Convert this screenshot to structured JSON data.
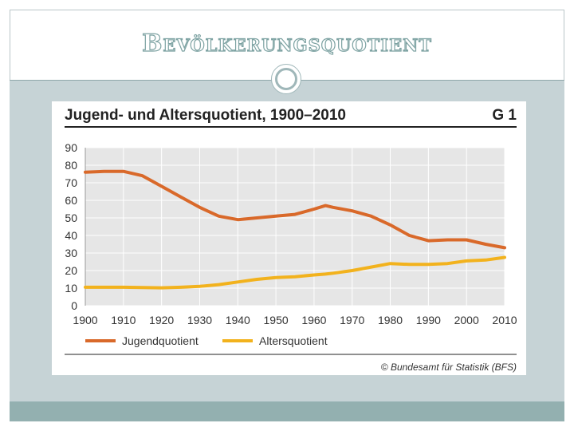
{
  "slide": {
    "title": "Bevölkerungsquotient",
    "colors": {
      "title_outline": "#7ea3a3",
      "band": "#c6d3d6",
      "bottom_band": "#93b0b0"
    }
  },
  "figure": {
    "title": "Jugend- und Altersquotient, 1900–2010",
    "code": "G 1",
    "source": "© Bundesamt für Statistik (BFS)"
  },
  "chart_data": {
    "type": "line",
    "title": "Jugend- und Altersquotient, 1900–2010",
    "xlabel": "",
    "ylabel": "",
    "xlim": [
      1900,
      2010
    ],
    "ylim": [
      0,
      90
    ],
    "x_ticks": [
      1900,
      1910,
      1920,
      1930,
      1940,
      1950,
      1960,
      1970,
      1980,
      1990,
      2000,
      2010
    ],
    "y_ticks": [
      0,
      10,
      20,
      30,
      40,
      50,
      60,
      70,
      80,
      90
    ],
    "grid": true,
    "legend_position": "bottom",
    "x": [
      1900,
      1905,
      1910,
      1915,
      1920,
      1925,
      1930,
      1935,
      1940,
      1945,
      1950,
      1955,
      1960,
      1963,
      1965,
      1970,
      1975,
      1980,
      1985,
      1990,
      1995,
      2000,
      2005,
      2010
    ],
    "series": [
      {
        "name": "Jugendquotient",
        "color": "#d9692a",
        "values": [
          76,
          76.5,
          76.5,
          74,
          68,
          62,
          56,
          51,
          49,
          50,
          51,
          52,
          55,
          57,
          56,
          54,
          51,
          46,
          40,
          37,
          37.5,
          37.5,
          35,
          33
        ]
      },
      {
        "name": "Altersquotient",
        "color": "#f2b21d",
        "values": [
          10.5,
          10.5,
          10.5,
          10.3,
          10.2,
          10.5,
          11,
          12,
          13.5,
          15,
          16,
          16.5,
          17.5,
          18,
          18.5,
          20,
          22,
          24,
          23.5,
          23.5,
          24,
          25.5,
          26,
          27.5
        ]
      }
    ]
  }
}
